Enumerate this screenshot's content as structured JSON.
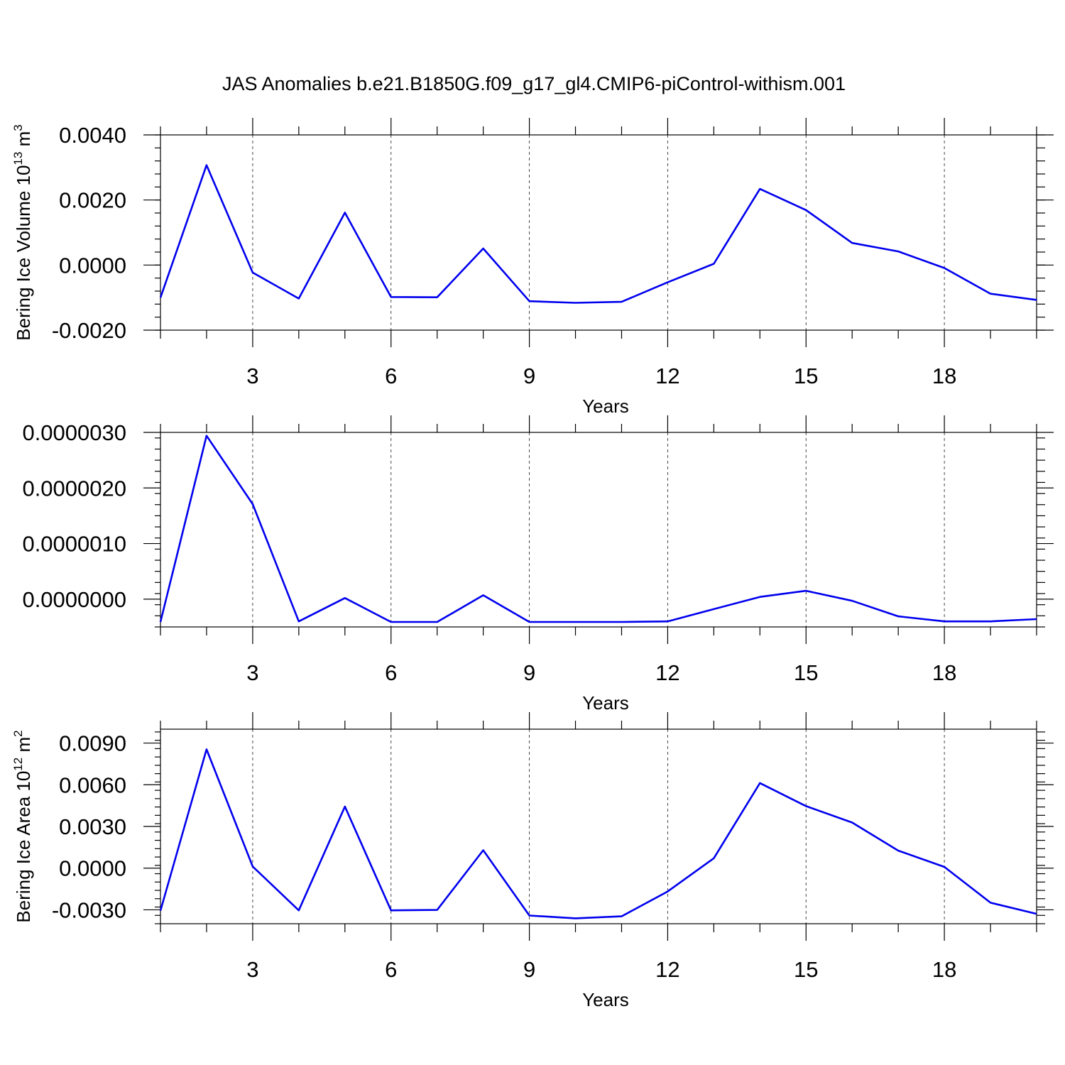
{
  "figure_title": "JAS Anomalies b.e21.B1850G.f09_g17_gl4.CMIP6-piControl-withism.001",
  "colors": {
    "line": "#0000ee",
    "axis": "#000000"
  },
  "chart_data": [
    {
      "type": "line",
      "title": "",
      "xlabel": "Years",
      "ylabel_main": "Bering Ice Volume 10",
      "ylabel_exp": "13",
      "ylabel_unit": " m",
      "ylabel_unit_exp": "3",
      "xlim": [
        1,
        20
      ],
      "ylim": [
        -0.002,
        0.004
      ],
      "x_ticks": [
        3,
        6,
        9,
        12,
        15,
        18
      ],
      "x_tick_labels": [
        "3",
        "6",
        "9",
        "12",
        "15",
        "18"
      ],
      "y_ticks": [
        -0.002,
        0.0,
        0.002,
        0.004
      ],
      "y_tick_labels": [
        "-0.0020",
        "0.0000",
        "0.0020",
        "0.0040"
      ],
      "grid": "vertical dashed at labeled x ticks",
      "x": [
        1,
        2,
        3,
        4,
        5,
        6,
        7,
        8,
        9,
        10,
        11,
        12,
        13,
        14,
        15,
        16,
        17,
        18,
        19,
        20
      ],
      "values": [
        -0.001,
        0.00307,
        -0.00023,
        -0.00103,
        0.00161,
        -0.00098,
        -0.00099,
        0.00051,
        -0.00111,
        -0.00116,
        -0.00113,
        -0.00053,
        4e-05,
        0.00234,
        0.00169,
        0.00068,
        0.00042,
        -9e-05,
        -0.00088,
        -0.00107
      ]
    },
    {
      "type": "line",
      "title": "",
      "xlabel": "Years",
      "ylabel_main": "",
      "ylabel_exp": "",
      "ylabel_unit": "",
      "ylabel_unit_exp": "",
      "xlim": [
        1,
        20
      ],
      "ylim": [
        -5e-07,
        3e-06
      ],
      "x_ticks": [
        3,
        6,
        9,
        12,
        15,
        18
      ],
      "x_tick_labels": [
        "3",
        "6",
        "9",
        "12",
        "15",
        "18"
      ],
      "y_ticks": [
        0.0,
        1e-06,
        2e-06,
        3e-06
      ],
      "y_tick_labels": [
        "0.0000000",
        "0.0000010",
        "0.0000020",
        "0.0000030"
      ],
      "grid": "vertical dashed at labeled x ticks",
      "x": [
        1,
        2,
        3,
        4,
        5,
        6,
        7,
        8,
        9,
        10,
        11,
        12,
        13,
        14,
        15,
        16,
        17,
        18,
        19,
        20
      ],
      "values": [
        -4.1e-07,
        2.94e-06,
        1.71e-06,
        -4e-07,
        2e-08,
        -4.1e-07,
        -4.1e-07,
        7e-08,
        -4.1e-07,
        -4.1e-07,
        -4.1e-07,
        -4e-07,
        -1.8e-07,
        4e-08,
        1.5e-07,
        -3e-08,
        -3.1e-07,
        -4e-07,
        -4e-07,
        -3.6e-07
      ]
    },
    {
      "type": "line",
      "title": "",
      "xlabel": "Years",
      "ylabel_main": "Bering Ice Area 10",
      "ylabel_exp": "12",
      "ylabel_unit": " m",
      "ylabel_unit_exp": "2",
      "xlim": [
        1,
        20
      ],
      "ylim": [
        -0.004,
        0.01
      ],
      "x_ticks": [
        3,
        6,
        9,
        12,
        15,
        18
      ],
      "x_tick_labels": [
        "3",
        "6",
        "9",
        "12",
        "15",
        "18"
      ],
      "y_ticks": [
        -0.003,
        0.0,
        0.003,
        0.006,
        0.009
      ],
      "y_tick_labels": [
        "-0.0030",
        "0.0000",
        "0.0030",
        "0.0060",
        "0.0090"
      ],
      "grid": "vertical dashed at labeled x ticks",
      "x": [
        1,
        2,
        3,
        4,
        5,
        6,
        7,
        8,
        9,
        10,
        11,
        12,
        13,
        14,
        15,
        16,
        17,
        18,
        19,
        20
      ],
      "values": [
        -0.00306,
        0.00855,
        0.00012,
        -0.00304,
        0.00443,
        -0.00304,
        -0.00301,
        0.00129,
        -0.00341,
        -0.00361,
        -0.00347,
        -0.00168,
        0.00071,
        0.00612,
        0.00446,
        0.00328,
        0.00126,
        9e-05,
        -0.00249,
        -0.00329
      ]
    }
  ]
}
